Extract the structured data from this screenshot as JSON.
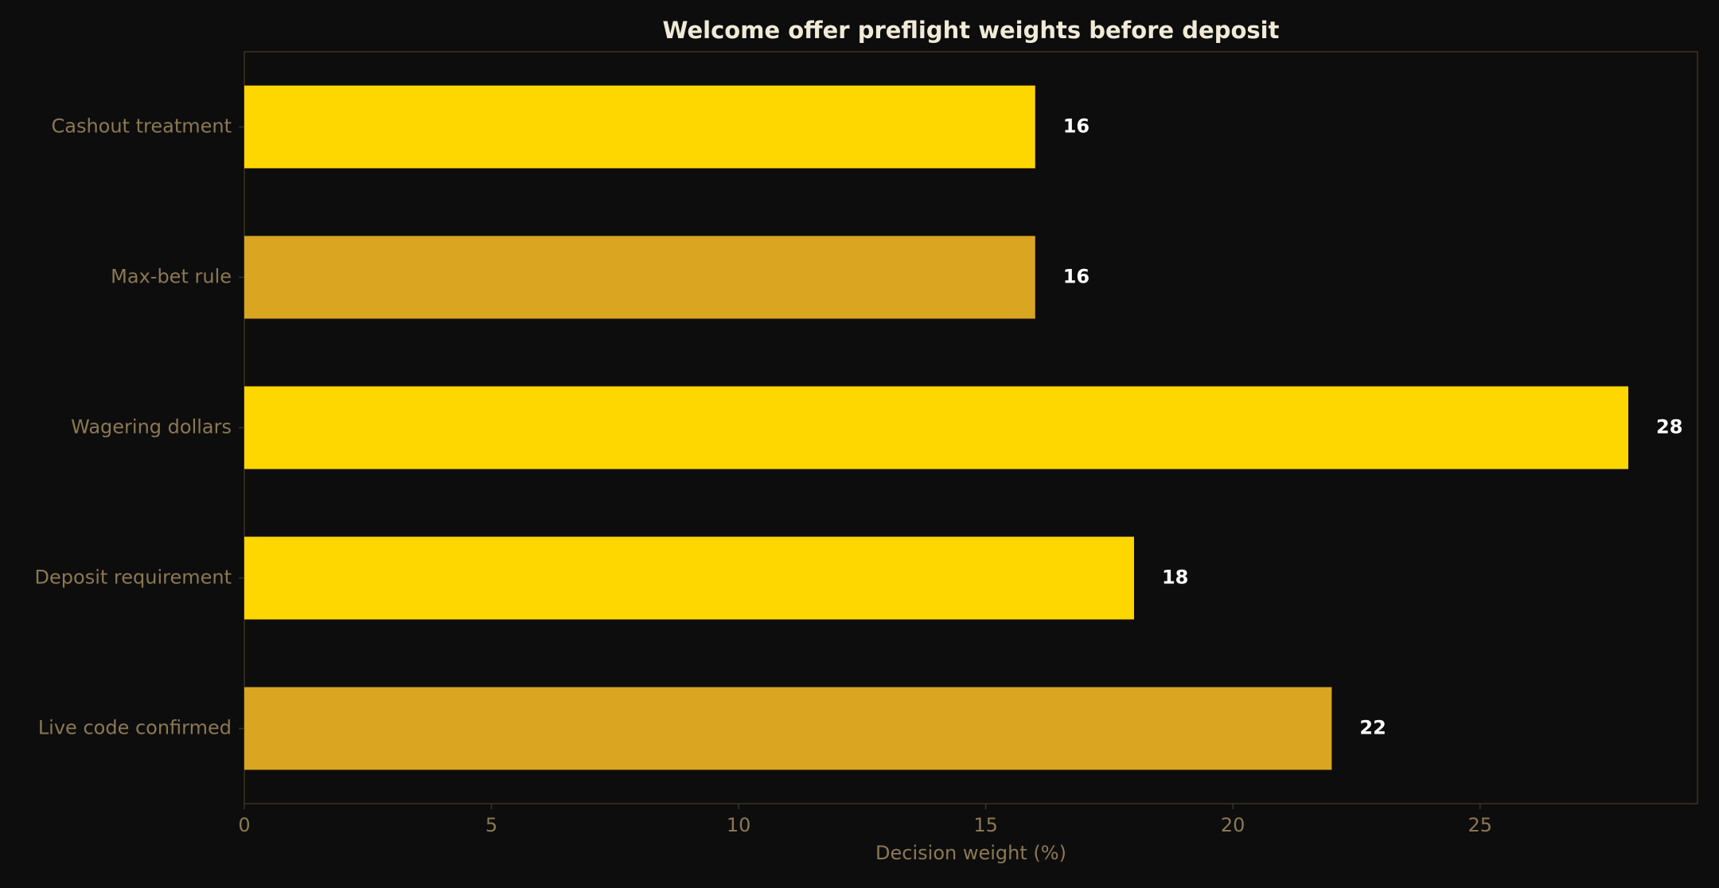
{
  "chart_data": {
    "type": "bar",
    "orientation": "horizontal",
    "title": "Welcome offer preflight weights before deposit",
    "x_label": "Decision weight (%)",
    "categories": [
      "Cashout treatment",
      "Max-bet rule",
      "Wagering dollars",
      "Deposit requirement",
      "Live code confirmed"
    ],
    "values": [
      16,
      16,
      28,
      18,
      22
    ],
    "colors": [
      "#ffd700",
      "#daa520",
      "#ffd700",
      "#ffd700",
      "#daa520"
    ],
    "xlim": [
      0,
      29.4
    ],
    "xticks": [
      0,
      5,
      10,
      15,
      20,
      25
    ],
    "grid": false
  }
}
